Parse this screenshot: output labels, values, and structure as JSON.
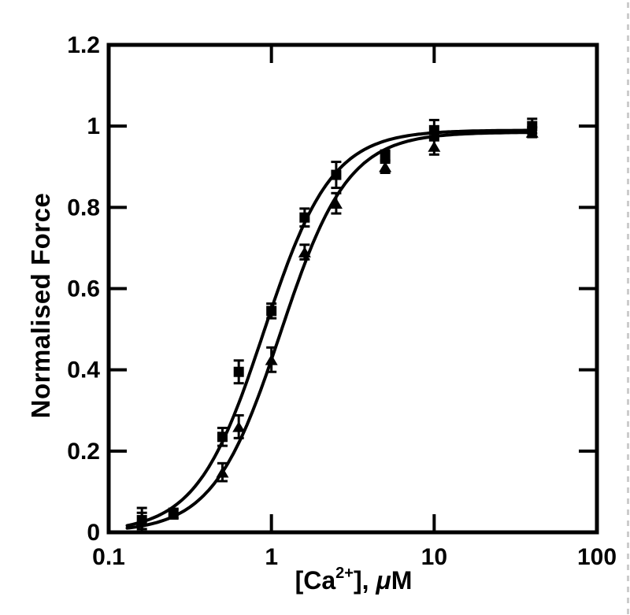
{
  "figure": {
    "background": "#ffffff",
    "ink": "#000000",
    "ylabel": "Normalised Force",
    "xlabel": {
      "pre": "[Ca",
      "sup": "2+",
      "mid": "], ",
      "mu": "μ",
      "unit": "M"
    }
  },
  "chart_data": {
    "type": "scatter",
    "title": "",
    "xlabel": "[Ca2+], μM",
    "ylabel": "Normalised Force",
    "x_scale": "log",
    "xlim": [
      0.1,
      100
    ],
    "ylim": [
      0,
      1.2
    ],
    "x_ticks": [
      0.1,
      1,
      10,
      100
    ],
    "x_tick_labels": [
      "0.1",
      "1",
      "10",
      "100"
    ],
    "y_ticks": [
      0,
      0.2,
      0.4,
      0.6,
      0.8,
      1,
      1.2
    ],
    "y_tick_labels": [
      "0",
      "0.2",
      "0.4",
      "0.6",
      "0.8",
      "1",
      "1.2"
    ],
    "grid": false,
    "legend": "none",
    "frame": "closed box, inward ticks mirrored on all four sides",
    "error_bars": "vertical, capped",
    "series": [
      {
        "name": "square-series",
        "marker": "filled-square",
        "color": "#000000",
        "points": [
          {
            "x": 0.16,
            "y": 0.03,
            "err": 0.03
          },
          {
            "x": 0.25,
            "y": 0.046,
            "err": 0.012
          },
          {
            "x": 0.5,
            "y": 0.235,
            "err": 0.022
          },
          {
            "x": 0.63,
            "y": 0.395,
            "err": 0.028
          },
          {
            "x": 1.0,
            "y": 0.545,
            "err": 0.018
          },
          {
            "x": 1.6,
            "y": 0.775,
            "err": 0.022
          },
          {
            "x": 2.5,
            "y": 0.88,
            "err": 0.032
          },
          {
            "x": 5.0,
            "y": 0.925,
            "err": 0.015
          },
          {
            "x": 10.0,
            "y": 0.99,
            "err": 0.025
          },
          {
            "x": 40.0,
            "y": 1.0,
            "err": 0.018
          }
        ],
        "fit_curve": {
          "model": "hill",
          "ymax": 0.99,
          "ec50": 0.9,
          "n": 2.1,
          "x_range": [
            0.13,
            42
          ]
        }
      },
      {
        "name": "triangle-series",
        "marker": "filled-triangle",
        "color": "#000000",
        "points": [
          {
            "x": 0.16,
            "y": 0.028,
            "err": 0.02
          },
          {
            "x": 0.5,
            "y": 0.148,
            "err": 0.022
          },
          {
            "x": 0.63,
            "y": 0.26,
            "err": 0.028
          },
          {
            "x": 1.0,
            "y": 0.425,
            "err": 0.03
          },
          {
            "x": 1.6,
            "y": 0.69,
            "err": 0.018
          },
          {
            "x": 2.5,
            "y": 0.81,
            "err": 0.025
          },
          {
            "x": 5.0,
            "y": 0.9,
            "err": 0.015
          },
          {
            "x": 10.0,
            "y": 0.95,
            "err": 0.02
          },
          {
            "x": 40.0,
            "y": 0.985,
            "err": 0.012
          }
        ],
        "fit_curve": {
          "model": "hill",
          "ymax": 0.985,
          "ec50": 1.14,
          "n": 2.1,
          "x_range": [
            0.13,
            42
          ]
        }
      }
    ]
  }
}
